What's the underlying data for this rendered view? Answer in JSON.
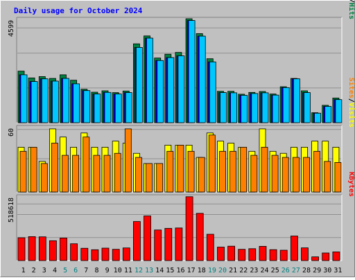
{
  "chart_data": {
    "type": "bar",
    "title": "Daily usage for October 2024",
    "categories": [
      "1",
      "2",
      "3",
      "4",
      "5",
      "6",
      "7",
      "8",
      "9",
      "10",
      "11",
      "12",
      "13",
      "14",
      "15",
      "16",
      "17",
      "18",
      "19",
      "20",
      "21",
      "22",
      "23",
      "24",
      "25",
      "26",
      "27",
      "28",
      "29",
      "30",
      "31"
    ],
    "weekend_days": [
      5,
      6,
      12,
      13,
      19,
      20,
      26,
      27
    ],
    "panels": [
      {
        "name": "hits-files-pages",
        "ytick": "4599",
        "ymax": 4599,
        "ylabel": [
          "Pages",
          "Files",
          "Hits"
        ],
        "series": [
          {
            "name": "Hits",
            "color": "#008040",
            "values": [
              2280,
              1980,
              2040,
              1960,
              2120,
              1880,
              1480,
              1350,
              1410,
              1330,
              1400,
              3490,
              3840,
              2860,
              3030,
              3110,
              4599,
              3940,
              2830,
              1390,
              1390,
              1260,
              1340,
              1380,
              1270,
              1590,
              1960,
              1410,
              440,
              770,
              1090
            ]
          },
          {
            "name": "Files",
            "color": "#0000ff",
            "values": [
              2120,
              1820,
              1940,
              1840,
              1960,
              1720,
              1420,
              1270,
              1340,
              1270,
              1330,
              3330,
              3740,
              2750,
              2880,
              2960,
              4520,
              3830,
              2690,
              1330,
              1320,
              1210,
              1290,
              1320,
              1220,
              1550,
              1940,
              1330,
              420,
              720,
              1020
            ]
          },
          {
            "name": "Pages",
            "color": "#00c8ff",
            "values": [
              2120,
              1820,
              1940,
              1840,
              1960,
              1720,
              1420,
              1270,
              1340,
              1270,
              1330,
              3330,
              3740,
              2750,
              2880,
              2960,
              4520,
              3830,
              2690,
              1330,
              1320,
              1210,
              1290,
              1320,
              1220,
              1550,
              1940,
              1330,
              420,
              720,
              1020
            ]
          }
        ]
      },
      {
        "name": "visits-sites",
        "ytick": "60",
        "ymax": 64,
        "ylabel": [
          "Sites",
          "Visits"
        ],
        "series": [
          {
            "name": "Visits",
            "color": "#ffff00",
            "values": [
              44,
              44,
              30,
              62,
              54,
              44,
              58,
              44,
              44,
              50,
              48,
              38,
              28,
              28,
              46,
              46,
              46,
              34,
              58,
              50,
              48,
              44,
              40,
              62,
              40,
              38,
              44,
              44,
              50,
              50,
              44
            ]
          },
          {
            "name": "Sites",
            "color": "#ff8000",
            "values": [
              40,
              44,
              28,
              48,
              36,
              36,
              54,
              36,
              36,
              38,
              62,
              34,
              28,
              28,
              40,
              46,
              40,
              34,
              56,
              40,
              40,
              44,
              36,
              44,
              36,
              34,
              34,
              34,
              40,
              30,
              29
            ]
          }
        ]
      },
      {
        "name": "kbytes",
        "ytick": "518618",
        "ymax": 600000,
        "ylabel": [
          "KBytes"
        ],
        "series": [
          {
            "name": "KBytes",
            "color": "#ff0000",
            "values": [
              213000,
              223000,
              221000,
              185000,
              210000,
              157000,
              115000,
              101000,
              116000,
              105000,
              118000,
              364000,
              416000,
              285000,
              300000,
              304000,
              595000,
              440000,
              245000,
              126000,
              134000,
              105000,
              111000,
              133000,
              102000,
              97000,
              229000,
              119000,
              35000,
              71000,
              81000
            ]
          }
        ]
      }
    ]
  }
}
